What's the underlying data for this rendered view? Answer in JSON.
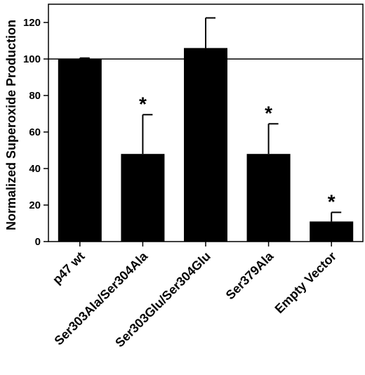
{
  "chart_data": {
    "type": "bar",
    "title": "",
    "xlabel": "",
    "ylabel": "Normalized Superoxide Production",
    "ylim": [
      0,
      130
    ],
    "yticks": [
      0,
      20,
      40,
      60,
      80,
      100,
      120
    ],
    "categories": [
      "p47 wt",
      "Ser303Ala/Ser304Ala",
      "Ser303Glu/Ser304Glu",
      "Ser379Ala",
      "Empty Vector"
    ],
    "values": [
      100,
      48,
      106,
      48,
      11
    ],
    "error_plus": [
      0.5,
      21.5,
      16.5,
      16.5,
      5
    ],
    "significance": [
      "",
      "*",
      "",
      "*",
      "*"
    ],
    "reference_line": 100,
    "bar_color": "#000000",
    "grid": false,
    "legend": "none"
  }
}
